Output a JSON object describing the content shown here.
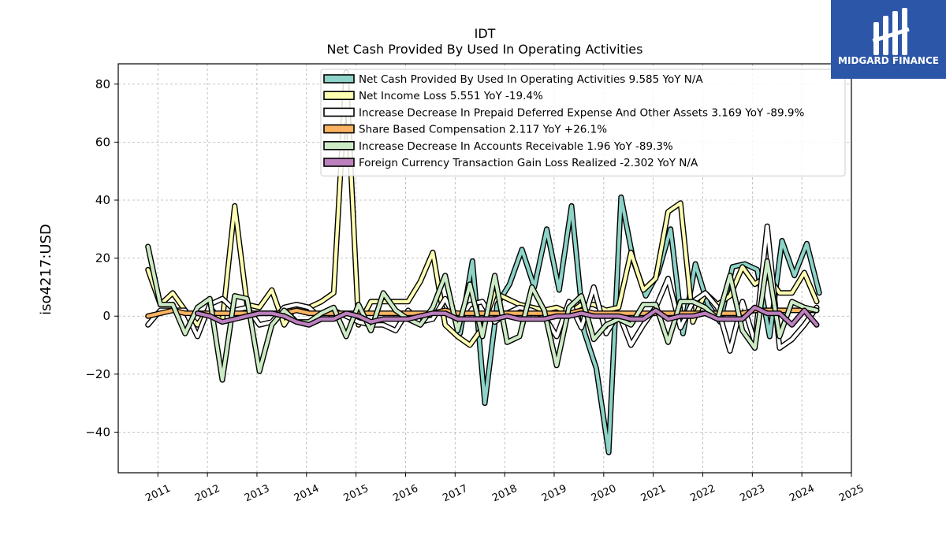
{
  "chart_data": {
    "type": "line",
    "title": "IDT",
    "subtitle": "Net Cash Provided By Used In Operating Activities",
    "xlabel": "",
    "ylabel": "iso4217:USD",
    "xlim": [
      2010.2,
      2025
    ],
    "ylim": [
      -54,
      87
    ],
    "x_ticks": [
      "2011",
      "2012",
      "2013",
      "2014",
      "2015",
      "2016",
      "2017",
      "2018",
      "2019",
      "2020",
      "2021",
      "2022",
      "2023",
      "2024",
      "2025"
    ],
    "y_ticks": [
      "80",
      "60",
      "40",
      "20",
      "0",
      "−20",
      "−40"
    ],
    "y_tick_values": [
      80,
      60,
      40,
      20,
      0,
      -20,
      -40
    ],
    "grid": true,
    "legend_position": "top-right",
    "series": [
      {
        "name": "Net Cash Provided By Used In Operating Activities",
        "legend_label": "Net Cash Provided By Used In Operating Activities  9.585 YoY N/A",
        "color": "#8dd3c7",
        "x": [
          2017.1,
          2017.35,
          2017.6,
          2017.85,
          2018.1,
          2018.35,
          2018.6,
          2018.85,
          2019.1,
          2019.35,
          2019.6,
          2019.85,
          2020.1,
          2020.35,
          2020.6,
          2020.85,
          2021.1,
          2021.35,
          2021.6,
          2021.85,
          2022.1,
          2022.35,
          2022.6,
          2022.85,
          2023.1,
          2023.35,
          2023.6,
          2023.85,
          2024.1,
          2024.35
        ],
        "y": [
          -6,
          19,
          -30,
          4,
          11,
          23,
          10,
          30,
          9,
          38,
          -5,
          -18,
          -47,
          41,
          19,
          7,
          15,
          30,
          -6,
          18,
          4,
          -2,
          17,
          18,
          16,
          -7,
          26,
          14,
          25,
          8
        ]
      },
      {
        "name": "Net Income Loss",
        "legend_label": "Net Income Loss  5.551 YoY -19.4%",
        "color": "#ffffb3",
        "x": [
          2010.8,
          2011.05,
          2011.3,
          2011.55,
          2011.8,
          2012.05,
          2012.3,
          2012.55,
          2012.8,
          2013.05,
          2013.3,
          2013.55,
          2013.8,
          2014.05,
          2014.3,
          2014.55,
          2014.8,
          2015.05,
          2015.3,
          2015.55,
          2015.8,
          2016.05,
          2016.3,
          2016.55,
          2016.8,
          2017.05,
          2017.3,
          2017.55,
          2017.8,
          2018.05,
          2018.3,
          2018.55,
          2018.8,
          2019.05,
          2019.3,
          2019.55,
          2019.8,
          2020.05,
          2020.3,
          2020.55,
          2020.8,
          2021.05,
          2021.3,
          2021.55,
          2021.8,
          2022.05,
          2022.3,
          2022.55,
          2022.8,
          2023.05,
          2023.3,
          2023.55,
          2023.8,
          2024.05,
          2024.3
        ],
        "y": [
          16,
          4,
          8,
          2,
          -3,
          3,
          -2,
          38,
          4,
          3,
          9,
          -3,
          4,
          3,
          5,
          8,
          84,
          -3,
          5,
          5,
          5,
          5,
          12,
          22,
          -3,
          -7,
          -10,
          -4,
          8,
          6,
          4,
          3,
          2,
          3,
          1,
          4,
          4,
          2,
          3,
          22,
          9,
          13,
          36,
          39,
          -2,
          8,
          4,
          7,
          17,
          11,
          14,
          8,
          8,
          15,
          5
        ]
      },
      {
        "name": "Increase Decrease In Prepaid Deferred Expense And Other Assets",
        "legend_label": "Increase Decrease In Prepaid Deferred Expense And Other Assets  3.169 YoY -89.9%",
        "color": "#ffffff",
        "x": [
          2010.8,
          2011.05,
          2011.3,
          2011.55,
          2011.8,
          2012.05,
          2012.3,
          2012.55,
          2012.8,
          2013.05,
          2013.3,
          2013.55,
          2013.8,
          2014.05,
          2014.3,
          2014.55,
          2014.8,
          2015.05,
          2015.3,
          2015.55,
          2015.8,
          2016.05,
          2016.3,
          2016.55,
          2016.8,
          2017.05,
          2017.3,
          2017.55,
          2017.8,
          2018.05,
          2018.3,
          2018.55,
          2018.8,
          2019.05,
          2019.3,
          2019.55,
          2019.8,
          2020.05,
          2020.3,
          2020.55,
          2020.8,
          2021.05,
          2021.3,
          2021.55,
          2021.8,
          2022.05,
          2022.3,
          2022.55,
          2022.8,
          2023.05,
          2023.3,
          2023.55,
          2023.8,
          2024.05,
          2024.3
        ],
        "y": [
          -3,
          2,
          2,
          2,
          -7,
          4,
          6,
          2,
          3,
          -3,
          -2,
          3,
          4,
          3,
          -1,
          2,
          0,
          -2,
          -3,
          -3,
          -5,
          2,
          -2,
          -1,
          6,
          -2,
          4,
          5,
          -2,
          1,
          3,
          2,
          0,
          -7,
          5,
          -4,
          10,
          -6,
          1,
          -10,
          -3,
          3,
          13,
          -4,
          5,
          8,
          3,
          -12,
          5,
          -9,
          31,
          -11,
          -8,
          -3,
          3
        ]
      },
      {
        "name": "Share Based Compensation",
        "legend_label": "Share Based Compensation  2.117 YoY +26.1%",
        "color": "#fdb462",
        "x": [
          2010.8,
          2011.05,
          2011.3,
          2011.55,
          2011.8,
          2012.05,
          2012.3,
          2012.55,
          2012.8,
          2013.05,
          2013.3,
          2013.55,
          2013.8,
          2014.05,
          2014.3,
          2014.55,
          2014.8,
          2015.05,
          2015.3,
          2015.55,
          2015.8,
          2016.05,
          2016.3,
          2016.55,
          2016.8,
          2017.05,
          2017.3,
          2017.55,
          2017.8,
          2018.05,
          2018.3,
          2018.55,
          2018.8,
          2019.05,
          2019.3,
          2019.55,
          2019.8,
          2020.05,
          2020.3,
          2020.55,
          2020.8,
          2021.05,
          2021.3,
          2021.55,
          2021.8,
          2022.05,
          2022.3,
          2022.55,
          2022.8,
          2023.05,
          2023.3,
          2023.55,
          2023.8,
          2024.05,
          2024.3
        ],
        "y": [
          0,
          1,
          2,
          1,
          1,
          1,
          1,
          1,
          1,
          1,
          1,
          1,
          2,
          1,
          1,
          1,
          1,
          1,
          1,
          1,
          1,
          1,
          1,
          1,
          2,
          1,
          1,
          1,
          1,
          1,
          1,
          1,
          1,
          1,
          1,
          2,
          1,
          1,
          1,
          1,
          1,
          1,
          1,
          1,
          1,
          1,
          1,
          1,
          1,
          2,
          2,
          2,
          2,
          2,
          2
        ]
      },
      {
        "name": "Increase Decrease In Accounts Receivable",
        "legend_label": "Increase Decrease In Accounts Receivable  1.96 YoY -89.3%",
        "color": "#ccebc5",
        "x": [
          2010.8,
          2011.05,
          2011.3,
          2011.55,
          2011.8,
          2012.05,
          2012.3,
          2012.55,
          2012.8,
          2013.05,
          2013.3,
          2013.55,
          2013.8,
          2014.05,
          2014.3,
          2014.55,
          2014.8,
          2015.05,
          2015.3,
          2015.55,
          2015.8,
          2016.05,
          2016.3,
          2016.55,
          2016.8,
          2017.05,
          2017.3,
          2017.55,
          2017.8,
          2018.05,
          2018.3,
          2018.55,
          2018.8,
          2019.05,
          2019.3,
          2019.55,
          2019.8,
          2020.05,
          2020.3,
          2020.55,
          2020.8,
          2021.05,
          2021.3,
          2021.55,
          2021.8,
          2022.05,
          2022.3,
          2022.55,
          2022.8,
          2023.05,
          2023.3,
          2023.55,
          2023.8,
          2024.05,
          2024.3
        ],
        "y": [
          24,
          4,
          4,
          -6,
          3,
          6,
          -22,
          7,
          6,
          -19,
          -3,
          2,
          -2,
          -2,
          1,
          3,
          -7,
          4,
          -5,
          8,
          2,
          -1,
          -3,
          3,
          14,
          -5,
          11,
          -7,
          14,
          -9,
          -7,
          10,
          2,
          -17,
          3,
          7,
          -8,
          -3,
          -1,
          -3,
          4,
          4,
          -9,
          5,
          5,
          3,
          -1,
          14,
          -5,
          -11,
          19,
          -7,
          5,
          3,
          2
        ]
      },
      {
        "name": "Foreign Currency Transaction Gain Loss Realized",
        "legend_label": "Foreign Currency Transaction Gain Loss Realized  -2.302 YoY N/A",
        "color": "#bc80bd",
        "x": [
          2011.8,
          2012.05,
          2012.3,
          2012.55,
          2012.8,
          2013.05,
          2013.3,
          2013.55,
          2013.8,
          2014.05,
          2014.3,
          2014.55,
          2014.8,
          2015.05,
          2015.3,
          2015.55,
          2015.8,
          2016.05,
          2016.3,
          2016.55,
          2016.8,
          2017.05,
          2017.3,
          2017.55,
          2017.8,
          2018.05,
          2018.3,
          2018.55,
          2018.8,
          2019.05,
          2019.3,
          2019.55,
          2019.8,
          2020.05,
          2020.3,
          2020.55,
          2020.8,
          2021.05,
          2021.3,
          2021.55,
          2021.8,
          2022.05,
          2022.3,
          2022.55,
          2022.8,
          2023.05,
          2023.3,
          2023.55,
          2023.8,
          2024.05,
          2024.3
        ],
        "y": [
          1,
          0,
          -2,
          -1,
          0,
          1,
          1,
          0,
          -2,
          -3,
          -1,
          -1,
          1,
          0,
          -2,
          -1,
          -1,
          -1,
          0,
          1,
          1,
          -1,
          -1,
          -1,
          -1,
          0,
          -1,
          -1,
          -1,
          0,
          0,
          1,
          0,
          0,
          0,
          -1,
          -1,
          2,
          -1,
          0,
          0,
          1,
          -1,
          -1,
          -1,
          3,
          1,
          1,
          -3,
          2,
          -3
        ]
      }
    ]
  },
  "logo": {
    "brand_text": "MIDGARD FINANCE",
    "bg_color": "#2c56a8"
  }
}
